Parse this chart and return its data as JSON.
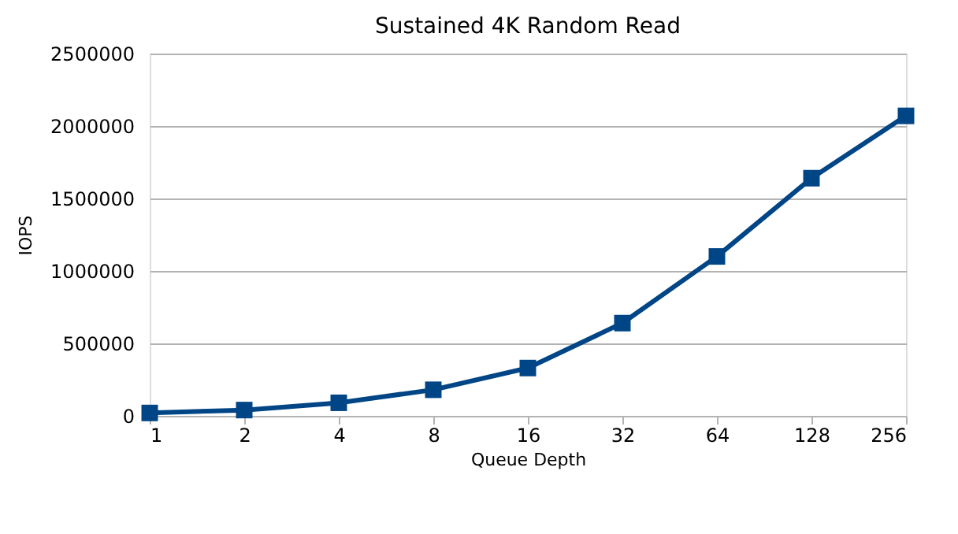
{
  "chart_data": {
    "type": "line",
    "title": "Sustained 4K Random Read",
    "xlabel": "Queue Depth",
    "ylabel": "IOPS",
    "categories": [
      "1",
      "2",
      "4",
      "8",
      "16",
      "32",
      "64",
      "128",
      "256"
    ],
    "series": [
      {
        "color": "#004586",
        "values": [
          20000,
          40000,
          90000,
          180000,
          330000,
          640000,
          1100000,
          1640000,
          2070000
        ]
      }
    ],
    "ylim": [
      0,
      2500000
    ],
    "yticks": [
      0,
      500000,
      1000000,
      1500000,
      2000000,
      2500000
    ],
    "grid": "y",
    "marker": "square",
    "line_style": "solid"
  }
}
